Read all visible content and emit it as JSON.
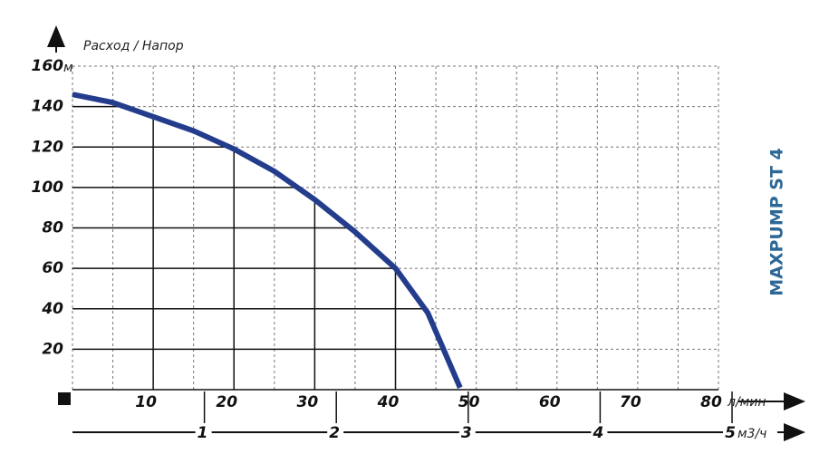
{
  "chart_data": {
    "type": "line",
    "title": "Расход / Напор",
    "model": "MAXPUMP ST 4",
    "y_unit": "м",
    "x_unit": "л/мин",
    "x2_unit": "м3/ч",
    "xlim": [
      0,
      80
    ],
    "xticks": [
      10,
      20,
      30,
      40,
      50,
      60,
      70,
      80
    ],
    "xminorticks": [
      5,
      15,
      25,
      35,
      45,
      55,
      65,
      75
    ],
    "ylim": [
      0,
      160
    ],
    "yticks": [
      20,
      40,
      60,
      80,
      100,
      120,
      140,
      160
    ],
    "x2lim": [
      0,
      5
    ],
    "x2ticks": [
      1,
      2,
      3,
      4,
      5
    ],
    "grid": true,
    "series": [
      {
        "color": "#233d8c",
        "x": [
          0,
          5,
          10,
          15,
          20,
          25,
          30,
          35,
          40,
          44,
          48
        ],
        "values": [
          146,
          142,
          135,
          128,
          119,
          108,
          94,
          78,
          60,
          38,
          1
        ]
      }
    ]
  }
}
